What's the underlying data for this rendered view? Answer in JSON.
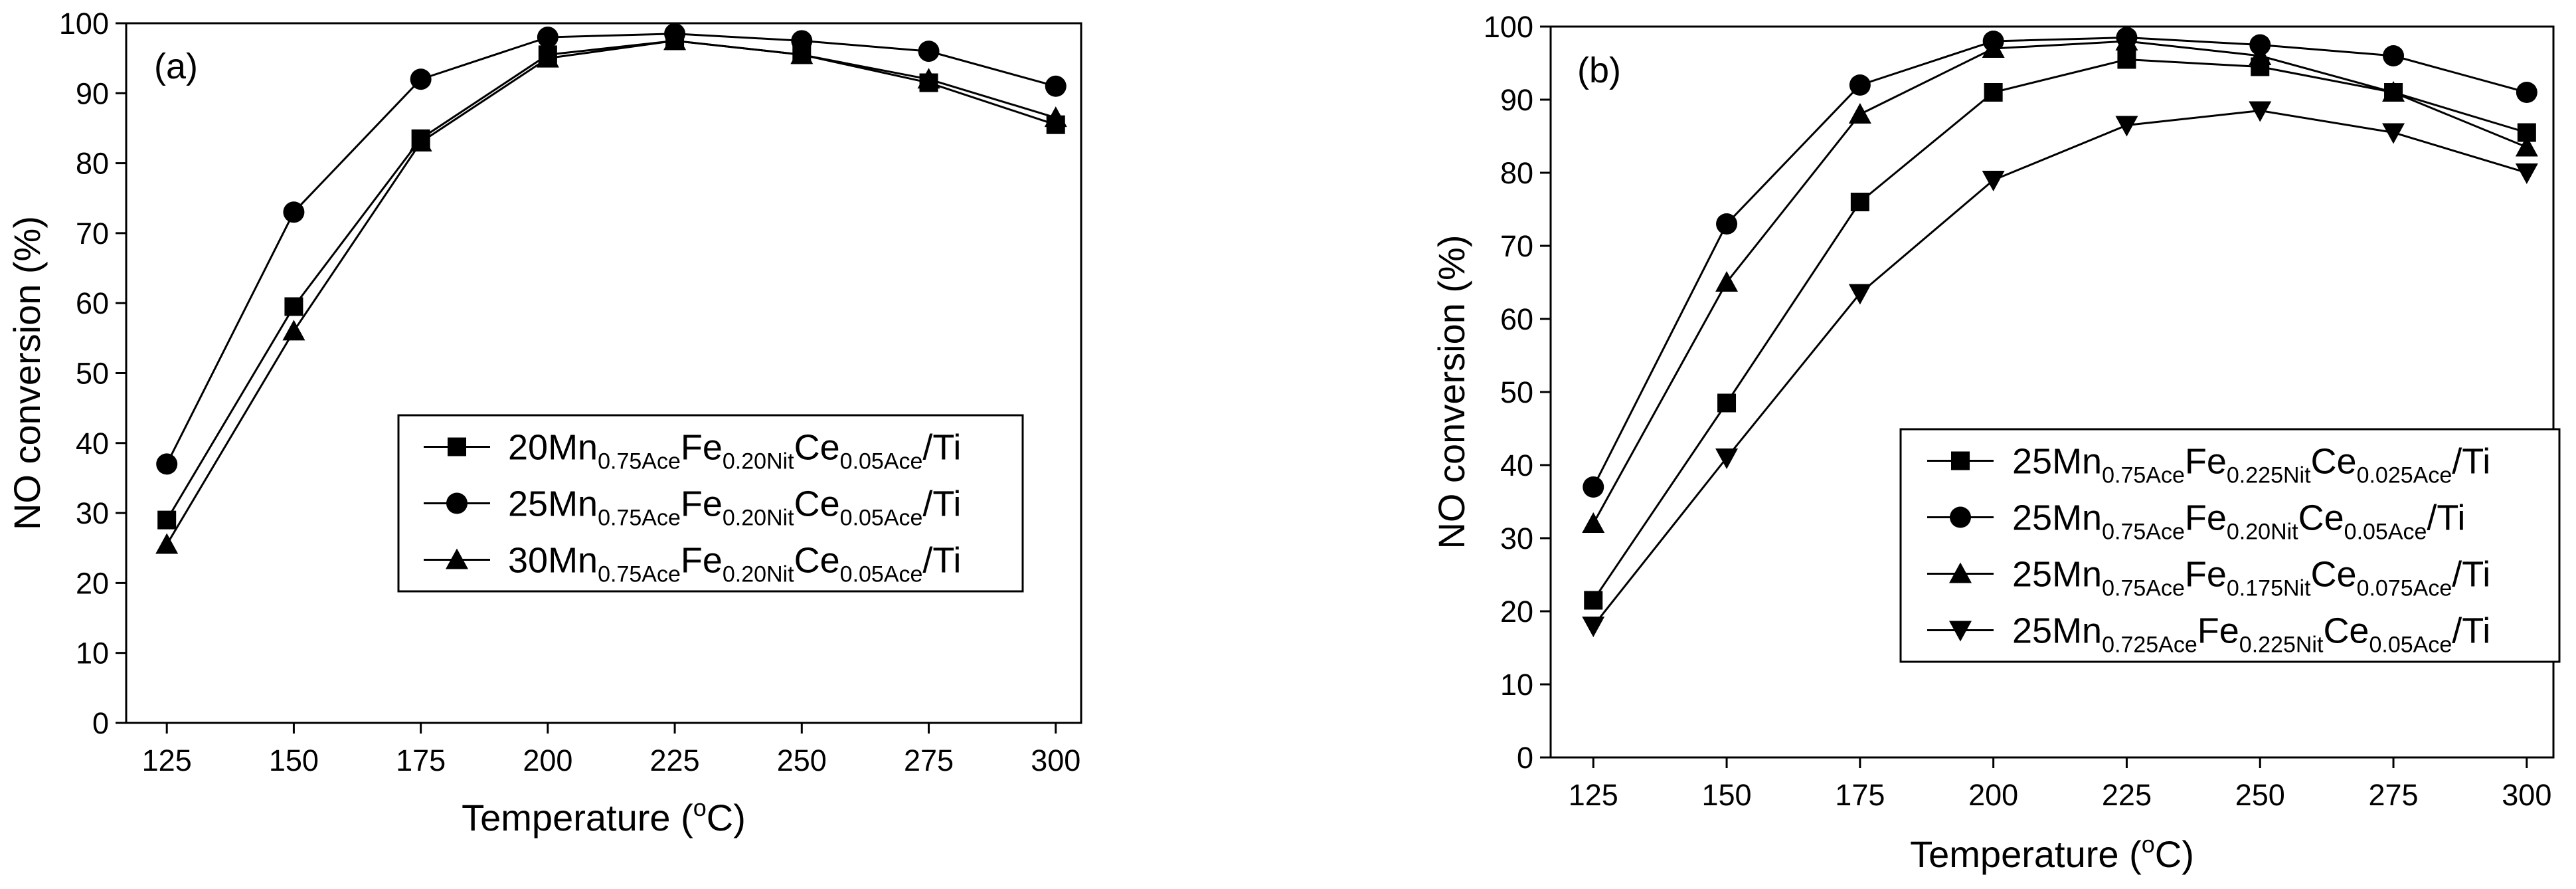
{
  "chart_data": [
    {
      "type": "line",
      "panel_label": "(a)",
      "xlabel": "Temperature (°C)",
      "xlabel_prefix": "Temperature (",
      "xlabel_sup": "o",
      "xlabel_suffix": "C)",
      "ylabel": "NO conversion (%)",
      "x": [
        125,
        150,
        175,
        200,
        225,
        250,
        275,
        300
      ],
      "xlim": [
        117,
        305
      ],
      "ylim": [
        0,
        100
      ],
      "xticks": [
        125,
        150,
        175,
        200,
        225,
        250,
        275,
        300
      ],
      "yticks": [
        0,
        10,
        20,
        30,
        40,
        50,
        60,
        70,
        80,
        90,
        100
      ],
      "legend_position": "center-right",
      "series": [
        {
          "name": "20Mn0.75AceFe0.20NitCe0.05Ace/Ti",
          "marker": "square",
          "parts": [
            [
              "20Mn",
              ""
            ],
            [
              "0.75Ace",
              "sub"
            ],
            [
              "Fe",
              ""
            ],
            [
              "0.20Nit",
              "sub"
            ],
            [
              "Ce",
              ""
            ],
            [
              "0.05Ace",
              "sub"
            ],
            [
              "/Ti",
              ""
            ]
          ],
          "values": [
            29,
            59.5,
            83.5,
            95.5,
            97.5,
            95.5,
            91.5,
            85.5
          ]
        },
        {
          "name": "25Mn0.75AceFe0.20NitCe0.05Ace/Ti",
          "marker": "circle",
          "parts": [
            [
              "25Mn",
              ""
            ],
            [
              "0.75Ace",
              "sub"
            ],
            [
              "Fe",
              ""
            ],
            [
              "0.20Nit",
              "sub"
            ],
            [
              "Ce",
              ""
            ],
            [
              "0.05Ace",
              "sub"
            ],
            [
              "/Ti",
              ""
            ]
          ],
          "values": [
            37,
            73,
            92,
            98,
            98.5,
            97.5,
            96,
            91
          ]
        },
        {
          "name": "30Mn0.75AceFe0.20NitCe0.05Ace/Ti",
          "marker": "triangle-up",
          "parts": [
            [
              "30Mn",
              ""
            ],
            [
              "0.75Ace",
              "sub"
            ],
            [
              "Fe",
              ""
            ],
            [
              "0.20Nit",
              "sub"
            ],
            [
              "Ce",
              ""
            ],
            [
              "0.05Ace",
              "sub"
            ],
            [
              "/Ti",
              ""
            ]
          ],
          "values": [
            25.5,
            56,
            83,
            95,
            97.5,
            95.5,
            92,
            86.5
          ]
        }
      ]
    },
    {
      "type": "line",
      "panel_label": "(b)",
      "xlabel": "Temperature (°C)",
      "xlabel_prefix": "Temperature (",
      "xlabel_sup": "o",
      "xlabel_suffix": "C)",
      "ylabel": "NO conversion (%)",
      "x": [
        125,
        150,
        175,
        200,
        225,
        250,
        275,
        300
      ],
      "xlim": [
        117,
        305
      ],
      "ylim": [
        0,
        100
      ],
      "xticks": [
        125,
        150,
        175,
        200,
        225,
        250,
        275,
        300
      ],
      "yticks": [
        0,
        10,
        20,
        30,
        40,
        50,
        60,
        70,
        80,
        90,
        100
      ],
      "legend_position": "lower-right",
      "series": [
        {
          "name": "25Mn0.75AceFe0.225NitCe0.025Ace/Ti",
          "marker": "square",
          "parts": [
            [
              "25Mn",
              ""
            ],
            [
              "0.75Ace",
              "sub"
            ],
            [
              "Fe",
              ""
            ],
            [
              "0.225Nit",
              "sub"
            ],
            [
              "Ce",
              ""
            ],
            [
              "0.025Ace",
              "sub"
            ],
            [
              "/Ti",
              ""
            ]
          ],
          "values": [
            21.5,
            48.5,
            76,
            91,
            95.5,
            94.5,
            91,
            85.5
          ]
        },
        {
          "name": "25Mn0.75AceFe0.20NitCe0.05Ace/Ti",
          "marker": "circle",
          "parts": [
            [
              "25Mn",
              ""
            ],
            [
              "0.75Ace",
              "sub"
            ],
            [
              "Fe",
              ""
            ],
            [
              "0.20Nit",
              "sub"
            ],
            [
              "Ce",
              ""
            ],
            [
              "0.05Ace",
              "sub"
            ],
            [
              "/Ti",
              ""
            ]
          ],
          "values": [
            37,
            73,
            92,
            98,
            98.5,
            97.5,
            96,
            91
          ]
        },
        {
          "name": "25Mn0.75AceFe0.175NitCe0.075Ace/Ti",
          "marker": "triangle-up",
          "parts": [
            [
              "25Mn",
              ""
            ],
            [
              "0.75Ace",
              "sub"
            ],
            [
              "Fe",
              ""
            ],
            [
              "0.175Nit",
              "sub"
            ],
            [
              "Ce",
              ""
            ],
            [
              "0.075Ace",
              "sub"
            ],
            [
              "/Ti",
              ""
            ]
          ],
          "values": [
            32,
            65,
            88,
            97,
            98,
            96,
            91,
            83.5
          ]
        },
        {
          "name": "25Mn0.725AceFe0.225NitCe0.05Ace/Ti",
          "marker": "triangle-down",
          "parts": [
            [
              "25Mn",
              ""
            ],
            [
              "0.725Ace",
              "sub"
            ],
            [
              "Fe",
              ""
            ],
            [
              "0.225Nit",
              "sub"
            ],
            [
              "Ce",
              ""
            ],
            [
              "0.05Ace",
              "sub"
            ],
            [
              "/Ti",
              ""
            ]
          ],
          "values": [
            18,
            41,
            63.5,
            79,
            86.5,
            88.5,
            85.5,
            80
          ]
        }
      ]
    }
  ]
}
